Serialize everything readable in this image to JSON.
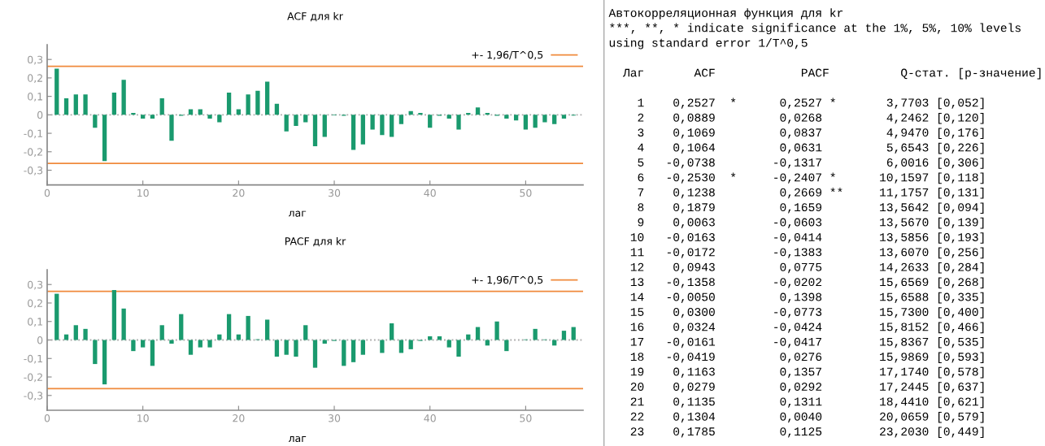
{
  "chart_data": [
    {
      "type": "bar",
      "title": "ACF для kr",
      "xlabel": "лаг",
      "color": "#1a9a6e",
      "x": [
        1,
        2,
        3,
        4,
        5,
        6,
        7,
        8,
        9,
        10,
        11,
        12,
        13,
        14,
        15,
        16,
        17,
        18,
        19,
        20,
        21,
        22,
        23,
        24,
        25,
        26,
        27,
        28,
        29,
        30,
        31,
        32,
        33,
        34,
        35,
        36,
        37,
        38,
        39,
        40,
        41,
        42,
        43,
        44,
        45,
        46,
        47,
        48,
        49,
        50,
        51,
        52,
        53,
        54,
        55
      ],
      "values": [
        0.25,
        0.09,
        0.11,
        0.11,
        -0.07,
        -0.25,
        0.12,
        0.19,
        0.01,
        -0.02,
        -0.02,
        0.09,
        -0.14,
        -0.005,
        0.03,
        0.03,
        -0.02,
        -0.04,
        0.12,
        0.03,
        0.11,
        0.13,
        0.18,
        0.06,
        -0.09,
        -0.06,
        -0.04,
        -0.17,
        -0.12,
        -0.003,
        -0.005,
        -0.19,
        -0.16,
        -0.08,
        -0.11,
        -0.12,
        -0.05,
        0.02,
        0.01,
        -0.07,
        -0.005,
        -0.02,
        -0.08,
        0.01,
        0.04,
        0.01,
        -0.005,
        -0.02,
        -0.03,
        -0.08,
        -0.07,
        -0.04,
        -0.05,
        -0.02,
        -0.004
      ],
      "xlim": [
        0,
        56
      ],
      "xticks": [
        0,
        10,
        20,
        30,
        40,
        50
      ],
      "ylim": [
        -0.38,
        0.38
      ],
      "yticks": [
        {
          "value": -0.3,
          "label": "-0,3"
        },
        {
          "value": -0.2,
          "label": "-0,2"
        },
        {
          "value": -0.1,
          "label": "-0,1"
        },
        0,
        {
          "value": 0.1,
          "label": "0,1"
        },
        {
          "value": 0.2,
          "label": "0,2"
        },
        {
          "value": 0.3,
          "label": "0,3"
        }
      ],
      "ref_lines": [
        {
          "axis": "y",
          "value": 0,
          "color": "#aaaaaa",
          "line_style": "dotted"
        },
        {
          "axis": "y",
          "value": 0.263,
          "label": "+- 1,96/T^0,5",
          "color": "#f08a3c"
        },
        {
          "axis": "y",
          "value": -0.263,
          "color": "#f08a3c"
        }
      ],
      "legend": "top right",
      "grid": false
    },
    {
      "type": "bar",
      "title": "PACF для kr",
      "xlabel": "лаг",
      "color": "#1a9a6e",
      "x": [
        1,
        2,
        3,
        4,
        5,
        6,
        7,
        8,
        9,
        10,
        11,
        12,
        13,
        14,
        15,
        16,
        17,
        18,
        19,
        20,
        21,
        22,
        23,
        24,
        25,
        26,
        27,
        28,
        29,
        30,
        31,
        32,
        33,
        34,
        35,
        36,
        37,
        38,
        39,
        40,
        41,
        42,
        43,
        44,
        45,
        46,
        47,
        48,
        49,
        50,
        51,
        52,
        53,
        54,
        55
      ],
      "values": [
        0.25,
        0.03,
        0.08,
        0.06,
        -0.13,
        -0.24,
        0.27,
        0.17,
        -0.06,
        -0.04,
        -0.14,
        0.08,
        -0.02,
        0.14,
        -0.08,
        -0.04,
        -0.04,
        0.03,
        0.14,
        0.03,
        0.13,
        0.004,
        0.11,
        -0.09,
        -0.08,
        -0.09,
        0.08,
        -0.15,
        -0.02,
        -0.005,
        -0.14,
        -0.12,
        -0.08,
        0.0,
        -0.07,
        0.09,
        -0.07,
        -0.05,
        -0.005,
        0.02,
        0.02,
        -0.04,
        -0.09,
        0.03,
        0.07,
        -0.03,
        0.1,
        -0.06,
        0.0,
        0.003,
        0.06,
        0.003,
        -0.03,
        0.05,
        0.07
      ],
      "xlim": [
        0,
        56
      ],
      "xticks": [
        0,
        10,
        20,
        30,
        40,
        50
      ],
      "ylim": [
        -0.38,
        0.38
      ],
      "yticks": [
        {
          "value": -0.3,
          "label": "-0,3"
        },
        {
          "value": -0.2,
          "label": "-0,2"
        },
        {
          "value": -0.1,
          "label": "-0,1"
        },
        0,
        {
          "value": 0.1,
          "label": "0,1"
        },
        {
          "value": 0.2,
          "label": "0,2"
        },
        {
          "value": 0.3,
          "label": "0,3"
        }
      ],
      "ref_lines": [
        {
          "axis": "y",
          "value": 0,
          "color": "#aaaaaa",
          "line_style": "dotted"
        },
        {
          "axis": "y",
          "value": 0.263,
          "label": "+- 1,96/T^0,5",
          "color": "#f08a3c"
        },
        {
          "axis": "y",
          "value": -0.263,
          "color": "#f08a3c"
        }
      ],
      "legend": "top right",
      "grid": false
    },
    {
      "type": "other",
      "title": "Автокорреляционная функция для kr",
      "annotations": [
        "***, **, * indicate significance at the 1%, 5%, 10% levels",
        "using standard error 1/T^0,5",
        "  Лаг       ACF            PACF          Q-стат. [p-значение]",
        "    1    0,2527  *      0,2527 *       3,7703 [0,052]",
        "    2    0,0889         0,0268         4,2462 [0,120]",
        "    3    0,1069         0,0837         4,9470 [0,176]",
        "    4    0,1064         0,0631         5,6543 [0,226]",
        "    5   -0,0738        -0,1317         6,0016 [0,306]",
        "    6   -0,2530  *     -0,2407 *      10,1597 [0,118]",
        "    7    0,1238         0,2669 **     11,1757 [0,131]",
        "    8    0,1879         0,1659        13,5642 [0,094]",
        "    9    0,0063        -0,0603        13,5670 [0,139]",
        "   10   -0,0163        -0,0414        13,5856 [0,193]",
        "   11   -0,0172        -0,1383        13,6070 [0,256]",
        "   12    0,0943         0,0775        14,2633 [0,284]",
        "   13   -0,1358        -0,0202        15,6569 [0,268]",
        "   14   -0,0050         0,1398        15,6588 [0,335]",
        "   15    0,0300        -0,0773        15,7300 [0,400]",
        "   16    0,0324        -0,0424        15,8152 [0,466]",
        "   17   -0,0161        -0,0417        15,8367 [0,535]",
        "   18   -0,0419         0,0276        15,9869 [0,593]",
        "   19    0,1163         0,1357        17,1740 [0,578]",
        "   20    0,0279         0,0292        17,2445 [0,637]",
        "   21    0,1135         0,1311        18,4410 [0,621]",
        "   22    0,1304         0,0040        20,0659 [0,579]",
        "   23    0,1785         0,1125        23,2030 [0,449]"
      ]
    }
  ]
}
